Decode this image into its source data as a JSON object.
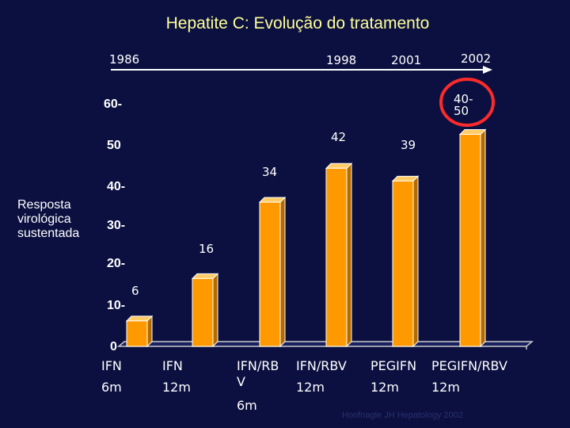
{
  "title": "Hepatite C: Evolução do tratamento",
  "timeline_years": [
    "1986",
    "1998",
    "2001",
    "2002"
  ],
  "ylabel_lines": [
    "Resposta",
    "virológica",
    "sustentada"
  ],
  "footnote": "Hoofnagle JH Hepatology 2002",
  "colors": {
    "background": "#0b1040",
    "bar_front": "#ff9900",
    "bar_top": "#ffcc66",
    "bar_side": "#b36b00",
    "highlight_circle": "#ff2a2a",
    "title": "#ffff99"
  },
  "chart_data": {
    "type": "bar",
    "title": "Hepatite C: Evolução do tratamento",
    "ylabel": "Resposta virológica sustentada",
    "yticks": [
      "0",
      "10-",
      "20-",
      "30-",
      "40-",
      "50",
      "60-"
    ],
    "ylim": [
      0,
      60
    ],
    "categories": [
      {
        "line1": "IFN",
        "line2": "6m"
      },
      {
        "line1": "IFN",
        "line2": "12m"
      },
      {
        "line1": "IFN/RB",
        "line1b": "V",
        "line2": "6m"
      },
      {
        "line1": "IFN/RBV",
        "line2": "12m"
      },
      {
        "line1": "PEGIFN",
        "line2": "12m"
      },
      {
        "line1": "PEGIFN/RBV",
        "line2": "12m"
      }
    ],
    "values": [
      6,
      16,
      34,
      42,
      39,
      50
    ],
    "value_labels": [
      "6",
      "16",
      "34",
      "42",
      "39",
      "40-\n50"
    ],
    "grid": false,
    "legend": "none"
  }
}
